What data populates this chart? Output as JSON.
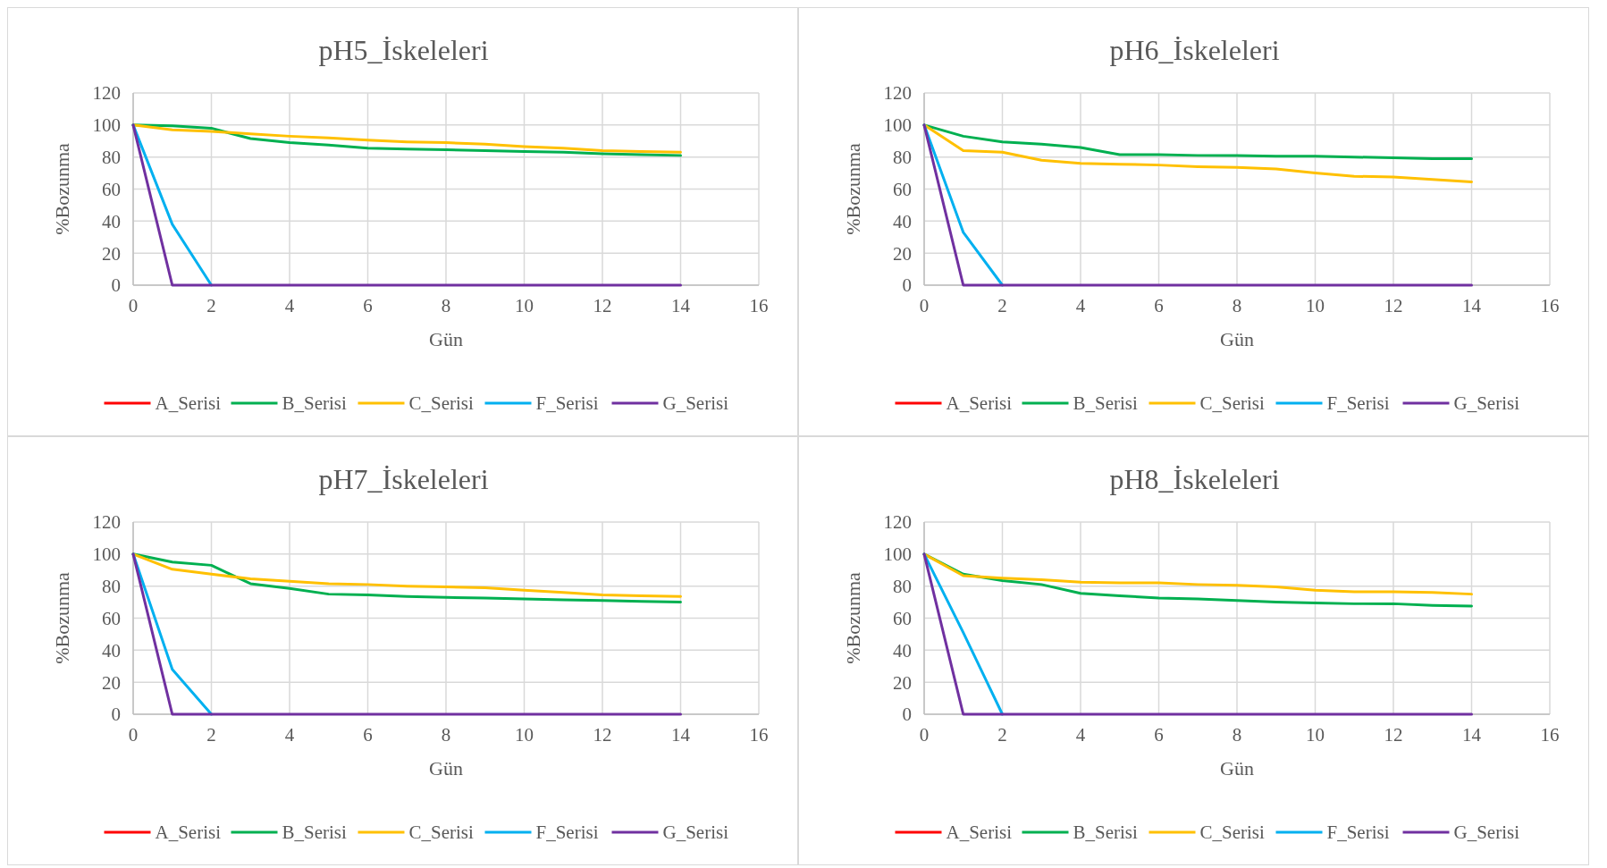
{
  "chart_data": [
    {
      "type": "line",
      "title": "pH5_İskeleleri",
      "xlabel": "Gün",
      "ylabel": "%Bozunma",
      "x": [
        0,
        1,
        2,
        3,
        4,
        5,
        6,
        7,
        8,
        9,
        10,
        11,
        12,
        13,
        14
      ],
      "xlim": [
        0,
        16
      ],
      "xticks": [
        0,
        2,
        4,
        6,
        8,
        10,
        12,
        14,
        16
      ],
      "ylim": [
        0,
        120
      ],
      "yticks": [
        0,
        20,
        40,
        60,
        80,
        100,
        120
      ],
      "grid": true,
      "legend": "bottom",
      "marker": "none",
      "series": [
        {
          "name": "A_Serisi",
          "color": "#ff0000",
          "values": [
            null,
            null,
            null,
            null,
            null,
            null,
            null,
            null,
            null,
            null,
            null,
            null,
            null,
            null,
            null
          ]
        },
        {
          "name": "B_Serisi",
          "color": "#00b050",
          "values": [
            100,
            99.5,
            98,
            91.5,
            89,
            87.5,
            85.5,
            85,
            84.5,
            84,
            83.5,
            83,
            82,
            81.5,
            81
          ]
        },
        {
          "name": "C_Serisi",
          "color": "#ffc000",
          "values": [
            100,
            97,
            96,
            94.5,
            93,
            92,
            90.5,
            89.5,
            89,
            88,
            86.5,
            85.5,
            84,
            83.5,
            83
          ]
        },
        {
          "name": "F_Serisi",
          "color": "#00b0f0",
          "values": [
            100,
            38,
            0,
            null,
            null,
            null,
            null,
            null,
            null,
            null,
            null,
            null,
            null,
            null,
            null
          ]
        },
        {
          "name": "G_Serisi",
          "color": "#7030a0",
          "values": [
            100,
            0,
            0,
            0,
            0,
            0,
            0,
            0,
            0,
            0,
            0,
            0,
            0,
            0,
            0
          ]
        }
      ]
    },
    {
      "type": "line",
      "title": "pH6_İskeleleri",
      "xlabel": "Gün",
      "ylabel": "%Bozunma",
      "x": [
        0,
        1,
        2,
        3,
        4,
        5,
        6,
        7,
        8,
        9,
        10,
        11,
        12,
        13,
        14
      ],
      "xlim": [
        0,
        16
      ],
      "xticks": [
        0,
        2,
        4,
        6,
        8,
        10,
        12,
        14,
        16
      ],
      "ylim": [
        0,
        120
      ],
      "yticks": [
        0,
        20,
        40,
        60,
        80,
        100,
        120
      ],
      "grid": true,
      "legend": "bottom",
      "marker": "none",
      "series": [
        {
          "name": "A_Serisi",
          "color": "#ff0000",
          "values": [
            null,
            null,
            null,
            null,
            null,
            null,
            null,
            null,
            null,
            null,
            null,
            null,
            null,
            null,
            null
          ]
        },
        {
          "name": "B_Serisi",
          "color": "#00b050",
          "values": [
            100,
            93,
            89.5,
            88,
            86,
            81.5,
            81.5,
            81,
            81,
            80.5,
            80.5,
            80,
            79.5,
            79,
            79
          ]
        },
        {
          "name": "C_Serisi",
          "color": "#ffc000",
          "values": [
            100,
            84,
            83,
            78,
            76,
            75.5,
            75,
            74,
            73.5,
            72.5,
            70,
            68,
            67.5,
            66,
            64.5
          ]
        },
        {
          "name": "F_Serisi",
          "color": "#00b0f0",
          "values": [
            100,
            33,
            0,
            null,
            null,
            null,
            null,
            null,
            null,
            null,
            null,
            null,
            null,
            null,
            null
          ]
        },
        {
          "name": "G_Serisi",
          "color": "#7030a0",
          "values": [
            100,
            0,
            0,
            0,
            0,
            0,
            0,
            0,
            0,
            0,
            0,
            0,
            0,
            0,
            0
          ]
        }
      ]
    },
    {
      "type": "line",
      "title": "pH7_İskeleleri",
      "xlabel": "Gün",
      "ylabel": "%Bozunma",
      "x": [
        0,
        1,
        2,
        3,
        4,
        5,
        6,
        7,
        8,
        9,
        10,
        11,
        12,
        13,
        14
      ],
      "xlim": [
        0,
        16
      ],
      "xticks": [
        0,
        2,
        4,
        6,
        8,
        10,
        12,
        14,
        16
      ],
      "ylim": [
        0,
        120
      ],
      "yticks": [
        0,
        20,
        40,
        60,
        80,
        100,
        120
      ],
      "grid": true,
      "legend": "bottom",
      "marker": "none",
      "series": [
        {
          "name": "A_Serisi",
          "color": "#ff0000",
          "values": [
            null,
            null,
            null,
            null,
            null,
            null,
            null,
            null,
            null,
            null,
            null,
            null,
            null,
            null,
            null
          ]
        },
        {
          "name": "B_Serisi",
          "color": "#00b050",
          "values": [
            100,
            95,
            93,
            81.5,
            78.5,
            75,
            74.5,
            73.5,
            73,
            72.5,
            72,
            71.5,
            71,
            70.5,
            70
          ]
        },
        {
          "name": "C_Serisi",
          "color": "#ffc000",
          "values": [
            100,
            90.5,
            87.5,
            84.5,
            83,
            81.5,
            81,
            80,
            79.5,
            79,
            77.5,
            76,
            74.5,
            74,
            73.5
          ]
        },
        {
          "name": "F_Serisi",
          "color": "#00b0f0",
          "values": [
            100,
            28,
            0,
            null,
            null,
            null,
            null,
            null,
            null,
            null,
            null,
            null,
            null,
            null,
            null
          ]
        },
        {
          "name": "G_Serisi",
          "color": "#7030a0",
          "values": [
            100,
            0,
            0,
            0,
            0,
            0,
            0,
            0,
            0,
            0,
            0,
            0,
            0,
            0,
            0
          ]
        }
      ]
    },
    {
      "type": "line",
      "title": "pH8_İskeleleri",
      "xlabel": "Gün",
      "ylabel": "%Bozunma",
      "x": [
        0,
        1,
        2,
        3,
        4,
        5,
        6,
        7,
        8,
        9,
        10,
        11,
        12,
        13,
        14
      ],
      "xlim": [
        0,
        16
      ],
      "xticks": [
        0,
        2,
        4,
        6,
        8,
        10,
        12,
        14,
        16
      ],
      "ylim": [
        0,
        120
      ],
      "yticks": [
        0,
        20,
        40,
        60,
        80,
        100,
        120
      ],
      "grid": true,
      "legend": "bottom",
      "marker": "none",
      "series": [
        {
          "name": "A_Serisi",
          "color": "#ff0000",
          "values": [
            null,
            null,
            null,
            null,
            null,
            null,
            null,
            null,
            null,
            null,
            null,
            null,
            null,
            null,
            null
          ]
        },
        {
          "name": "B_Serisi",
          "color": "#00b050",
          "values": [
            100,
            87.5,
            83.5,
            81,
            75.5,
            74,
            72.5,
            72,
            71,
            70,
            69.5,
            69,
            69,
            68,
            67.5
          ]
        },
        {
          "name": "C_Serisi",
          "color": "#ffc000",
          "values": [
            100,
            86.5,
            85,
            84,
            82.5,
            82,
            82,
            81,
            80.5,
            79.5,
            77.5,
            76.5,
            76.5,
            76,
            75
          ]
        },
        {
          "name": "F_Serisi",
          "color": "#00b0f0",
          "values": [
            100,
            51,
            0,
            null,
            null,
            null,
            null,
            null,
            null,
            null,
            null,
            null,
            null,
            null,
            null
          ]
        },
        {
          "name": "G_Serisi",
          "color": "#7030a0",
          "values": [
            100,
            0,
            0,
            0,
            0,
            0,
            0,
            0,
            0,
            0,
            0,
            0,
            0,
            0,
            0
          ]
        }
      ]
    }
  ]
}
